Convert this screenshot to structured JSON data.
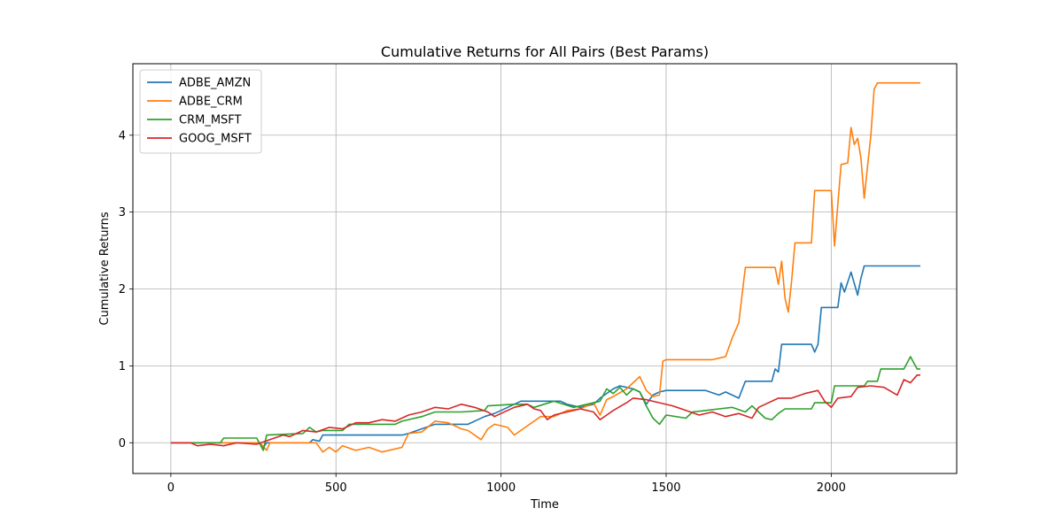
{
  "chart_data": {
    "type": "line",
    "title": "Cumulative Returns for All Pairs (Best Params)",
    "xlabel": "Time",
    "ylabel": "Cumulative Returns",
    "xlim": [
      -115,
      2380
    ],
    "ylim": [
      -0.4,
      4.93
    ],
    "xticks": [
      0,
      500,
      1000,
      1500,
      2000
    ],
    "yticks": [
      0,
      1,
      2,
      3,
      4
    ],
    "grid": true,
    "legend_position": "upper left",
    "series": [
      {
        "name": "ADBE_AMZN",
        "color": "#1f77b4",
        "points": [
          [
            0,
            0
          ],
          [
            150,
            0
          ],
          [
            270,
            0
          ],
          [
            280,
            -0.06
          ],
          [
            290,
            0
          ],
          [
            420,
            0
          ],
          [
            430,
            0.04
          ],
          [
            450,
            0.02
          ],
          [
            460,
            0.1
          ],
          [
            700,
            0.1
          ],
          [
            720,
            0.12
          ],
          [
            800,
            0.24
          ],
          [
            900,
            0.24
          ],
          [
            930,
            0.3
          ],
          [
            950,
            0.34
          ],
          [
            980,
            0.38
          ],
          [
            1000,
            0.42
          ],
          [
            1060,
            0.54
          ],
          [
            1180,
            0.54
          ],
          [
            1200,
            0.5
          ],
          [
            1240,
            0.46
          ],
          [
            1280,
            0.5
          ],
          [
            1300,
            0.58
          ],
          [
            1340,
            0.7
          ],
          [
            1360,
            0.74
          ],
          [
            1380,
            0.72
          ],
          [
            1400,
            0.7
          ],
          [
            1420,
            0.66
          ],
          [
            1440,
            0.5
          ],
          [
            1460,
            0.62
          ],
          [
            1480,
            0.66
          ],
          [
            1500,
            0.68
          ],
          [
            1620,
            0.68
          ],
          [
            1660,
            0.62
          ],
          [
            1680,
            0.66
          ],
          [
            1720,
            0.58
          ],
          [
            1740,
            0.8
          ],
          [
            1820,
            0.8
          ],
          [
            1830,
            0.96
          ],
          [
            1840,
            0.92
          ],
          [
            1850,
            1.28
          ],
          [
            1940,
            1.28
          ],
          [
            1950,
            1.18
          ],
          [
            1960,
            1.28
          ],
          [
            1970,
            1.76
          ],
          [
            2020,
            1.76
          ],
          [
            2030,
            2.08
          ],
          [
            2040,
            1.96
          ],
          [
            2060,
            2.22
          ],
          [
            2080,
            1.92
          ],
          [
            2090,
            2.14
          ],
          [
            2100,
            2.3
          ],
          [
            2270,
            2.3
          ]
        ]
      },
      {
        "name": "ADBE_CRM",
        "color": "#ff7f0e",
        "points": [
          [
            0,
            0
          ],
          [
            270,
            0
          ],
          [
            290,
            -0.1
          ],
          [
            300,
            0
          ],
          [
            440,
            0
          ],
          [
            460,
            -0.12
          ],
          [
            480,
            -0.06
          ],
          [
            500,
            -0.12
          ],
          [
            520,
            -0.04
          ],
          [
            560,
            -0.1
          ],
          [
            600,
            -0.06
          ],
          [
            640,
            -0.12
          ],
          [
            680,
            -0.08
          ],
          [
            700,
            -0.06
          ],
          [
            720,
            0.12
          ],
          [
            760,
            0.14
          ],
          [
            800,
            0.28
          ],
          [
            840,
            0.26
          ],
          [
            880,
            0.18
          ],
          [
            900,
            0.16
          ],
          [
            940,
            0.04
          ],
          [
            960,
            0.18
          ],
          [
            980,
            0.24
          ],
          [
            1020,
            0.2
          ],
          [
            1040,
            0.1
          ],
          [
            1080,
            0.22
          ],
          [
            1120,
            0.34
          ],
          [
            1160,
            0.34
          ],
          [
            1200,
            0.42
          ],
          [
            1240,
            0.44
          ],
          [
            1280,
            0.52
          ],
          [
            1300,
            0.36
          ],
          [
            1320,
            0.56
          ],
          [
            1340,
            0.6
          ],
          [
            1380,
            0.7
          ],
          [
            1400,
            0.78
          ],
          [
            1420,
            0.86
          ],
          [
            1440,
            0.68
          ],
          [
            1460,
            0.6
          ],
          [
            1480,
            0.62
          ],
          [
            1490,
            1.06
          ],
          [
            1500,
            1.08
          ],
          [
            1640,
            1.08
          ],
          [
            1660,
            1.1
          ],
          [
            1680,
            1.12
          ],
          [
            1700,
            1.36
          ],
          [
            1720,
            1.56
          ],
          [
            1740,
            2.28
          ],
          [
            1830,
            2.28
          ],
          [
            1840,
            2.06
          ],
          [
            1850,
            2.36
          ],
          [
            1860,
            1.88
          ],
          [
            1870,
            1.7
          ],
          [
            1880,
            2.1
          ],
          [
            1890,
            2.6
          ],
          [
            1940,
            2.6
          ],
          [
            1950,
            3.28
          ],
          [
            2000,
            3.28
          ],
          [
            2010,
            2.56
          ],
          [
            2020,
            3.1
          ],
          [
            2030,
            3.62
          ],
          [
            2050,
            3.64
          ],
          [
            2060,
            4.1
          ],
          [
            2070,
            3.88
          ],
          [
            2080,
            3.96
          ],
          [
            2090,
            3.7
          ],
          [
            2100,
            3.18
          ],
          [
            2110,
            3.6
          ],
          [
            2120,
            4.0
          ],
          [
            2130,
            4.6
          ],
          [
            2140,
            4.68
          ],
          [
            2270,
            4.68
          ]
        ]
      },
      {
        "name": "CRM_MSFT",
        "color": "#2ca02c",
        "points": [
          [
            0,
            0
          ],
          [
            150,
            0
          ],
          [
            160,
            0.06
          ],
          [
            260,
            0.06
          ],
          [
            280,
            -0.1
          ],
          [
            290,
            0.1
          ],
          [
            400,
            0.12
          ],
          [
            420,
            0.2
          ],
          [
            440,
            0.14
          ],
          [
            460,
            0.16
          ],
          [
            520,
            0.16
          ],
          [
            540,
            0.24
          ],
          [
            680,
            0.24
          ],
          [
            700,
            0.28
          ],
          [
            760,
            0.34
          ],
          [
            800,
            0.4
          ],
          [
            880,
            0.4
          ],
          [
            950,
            0.42
          ],
          [
            960,
            0.48
          ],
          [
            1040,
            0.5
          ],
          [
            1080,
            0.5
          ],
          [
            1100,
            0.46
          ],
          [
            1160,
            0.54
          ],
          [
            1220,
            0.46
          ],
          [
            1260,
            0.5
          ],
          [
            1300,
            0.54
          ],
          [
            1320,
            0.7
          ],
          [
            1340,
            0.64
          ],
          [
            1360,
            0.72
          ],
          [
            1380,
            0.62
          ],
          [
            1400,
            0.7
          ],
          [
            1420,
            0.66
          ],
          [
            1440,
            0.48
          ],
          [
            1460,
            0.32
          ],
          [
            1480,
            0.24
          ],
          [
            1500,
            0.36
          ],
          [
            1560,
            0.32
          ],
          [
            1580,
            0.4
          ],
          [
            1620,
            0.42
          ],
          [
            1660,
            0.44
          ],
          [
            1700,
            0.46
          ],
          [
            1740,
            0.4
          ],
          [
            1760,
            0.48
          ],
          [
            1780,
            0.4
          ],
          [
            1800,
            0.32
          ],
          [
            1820,
            0.3
          ],
          [
            1840,
            0.38
          ],
          [
            1860,
            0.44
          ],
          [
            1940,
            0.44
          ],
          [
            1950,
            0.52
          ],
          [
            2000,
            0.52
          ],
          [
            2010,
            0.74
          ],
          [
            2100,
            0.74
          ],
          [
            2110,
            0.8
          ],
          [
            2140,
            0.8
          ],
          [
            2150,
            0.96
          ],
          [
            2220,
            0.96
          ],
          [
            2240,
            1.12
          ],
          [
            2250,
            1.04
          ],
          [
            2260,
            0.96
          ],
          [
            2270,
            0.96
          ]
        ]
      },
      {
        "name": "GOOG_MSFT",
        "color": "#d62728",
        "points": [
          [
            0,
            0
          ],
          [
            60,
            0
          ],
          [
            80,
            -0.04
          ],
          [
            120,
            -0.02
          ],
          [
            160,
            -0.04
          ],
          [
            200,
            0
          ],
          [
            260,
            -0.02
          ],
          [
            300,
            0.04
          ],
          [
            340,
            0.1
          ],
          [
            360,
            0.08
          ],
          [
            400,
            0.16
          ],
          [
            440,
            0.14
          ],
          [
            480,
            0.2
          ],
          [
            520,
            0.18
          ],
          [
            560,
            0.26
          ],
          [
            600,
            0.26
          ],
          [
            640,
            0.3
          ],
          [
            680,
            0.28
          ],
          [
            720,
            0.36
          ],
          [
            760,
            0.4
          ],
          [
            800,
            0.46
          ],
          [
            840,
            0.44
          ],
          [
            880,
            0.5
          ],
          [
            920,
            0.46
          ],
          [
            960,
            0.4
          ],
          [
            980,
            0.34
          ],
          [
            1000,
            0.38
          ],
          [
            1040,
            0.46
          ],
          [
            1080,
            0.5
          ],
          [
            1100,
            0.44
          ],
          [
            1120,
            0.42
          ],
          [
            1140,
            0.3
          ],
          [
            1160,
            0.36
          ],
          [
            1200,
            0.4
          ],
          [
            1240,
            0.44
          ],
          [
            1280,
            0.4
          ],
          [
            1300,
            0.3
          ],
          [
            1320,
            0.36
          ],
          [
            1340,
            0.42
          ],
          [
            1380,
            0.52
          ],
          [
            1400,
            0.58
          ],
          [
            1440,
            0.56
          ],
          [
            1480,
            0.52
          ],
          [
            1520,
            0.48
          ],
          [
            1560,
            0.42
          ],
          [
            1600,
            0.36
          ],
          [
            1640,
            0.4
          ],
          [
            1680,
            0.34
          ],
          [
            1720,
            0.38
          ],
          [
            1760,
            0.32
          ],
          [
            1780,
            0.46
          ],
          [
            1800,
            0.5
          ],
          [
            1840,
            0.58
          ],
          [
            1880,
            0.58
          ],
          [
            1920,
            0.64
          ],
          [
            1960,
            0.68
          ],
          [
            1980,
            0.54
          ],
          [
            2000,
            0.46
          ],
          [
            2020,
            0.58
          ],
          [
            2060,
            0.6
          ],
          [
            2080,
            0.72
          ],
          [
            2120,
            0.74
          ],
          [
            2160,
            0.72
          ],
          [
            2200,
            0.62
          ],
          [
            2220,
            0.82
          ],
          [
            2240,
            0.78
          ],
          [
            2260,
            0.88
          ],
          [
            2270,
            0.88
          ]
        ]
      }
    ]
  }
}
